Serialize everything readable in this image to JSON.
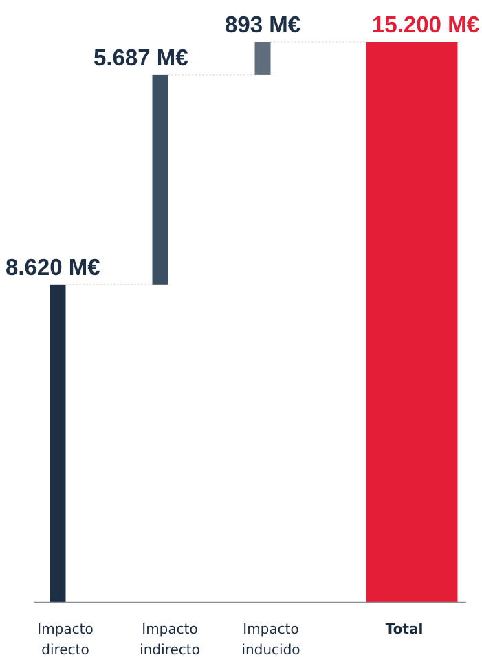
{
  "chart_data": {
    "type": "bar",
    "subtype": "waterfall",
    "categories": [
      [
        "Impacto",
        "directo"
      ],
      [
        "Impacto",
        "indirecto"
      ],
      [
        "Impacto",
        "inducido"
      ],
      [
        "Total"
      ]
    ],
    "values": [
      8620,
      5687,
      893,
      15200
    ],
    "value_labels": [
      "8.620 M€",
      "5.687 M€",
      "893 M€",
      "15.200 M€"
    ],
    "is_total": [
      false,
      false,
      false,
      true
    ],
    "ylim": [
      0,
      15200
    ],
    "grid": false,
    "legend": "none",
    "title": "",
    "xlabel": "",
    "ylabel": "",
    "colors": {
      "bars": [
        "#1c2f45",
        "#3d4f63",
        "#5f6d7c",
        "#e31e36"
      ],
      "labels": [
        "#1c2f45",
        "#1c2f45",
        "#1c2f45",
        "#e31e36"
      ],
      "category_text": "#1c2c40",
      "total_text": "#e31e36",
      "connector": "#c8c8c8",
      "axis": "#8a8f96"
    }
  }
}
